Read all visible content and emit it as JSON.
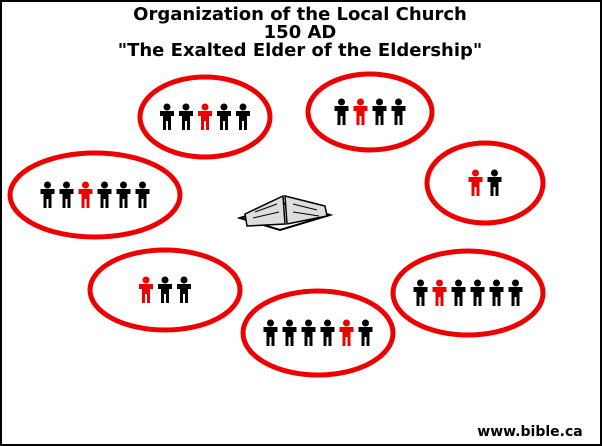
{
  "header": {
    "title_lines": [
      "Organization of the Local Church",
      "150 AD",
      "\"The Exalted Elder of the Eldership\""
    ]
  },
  "footer": {
    "watermark": "www.bible.ca"
  }
}
